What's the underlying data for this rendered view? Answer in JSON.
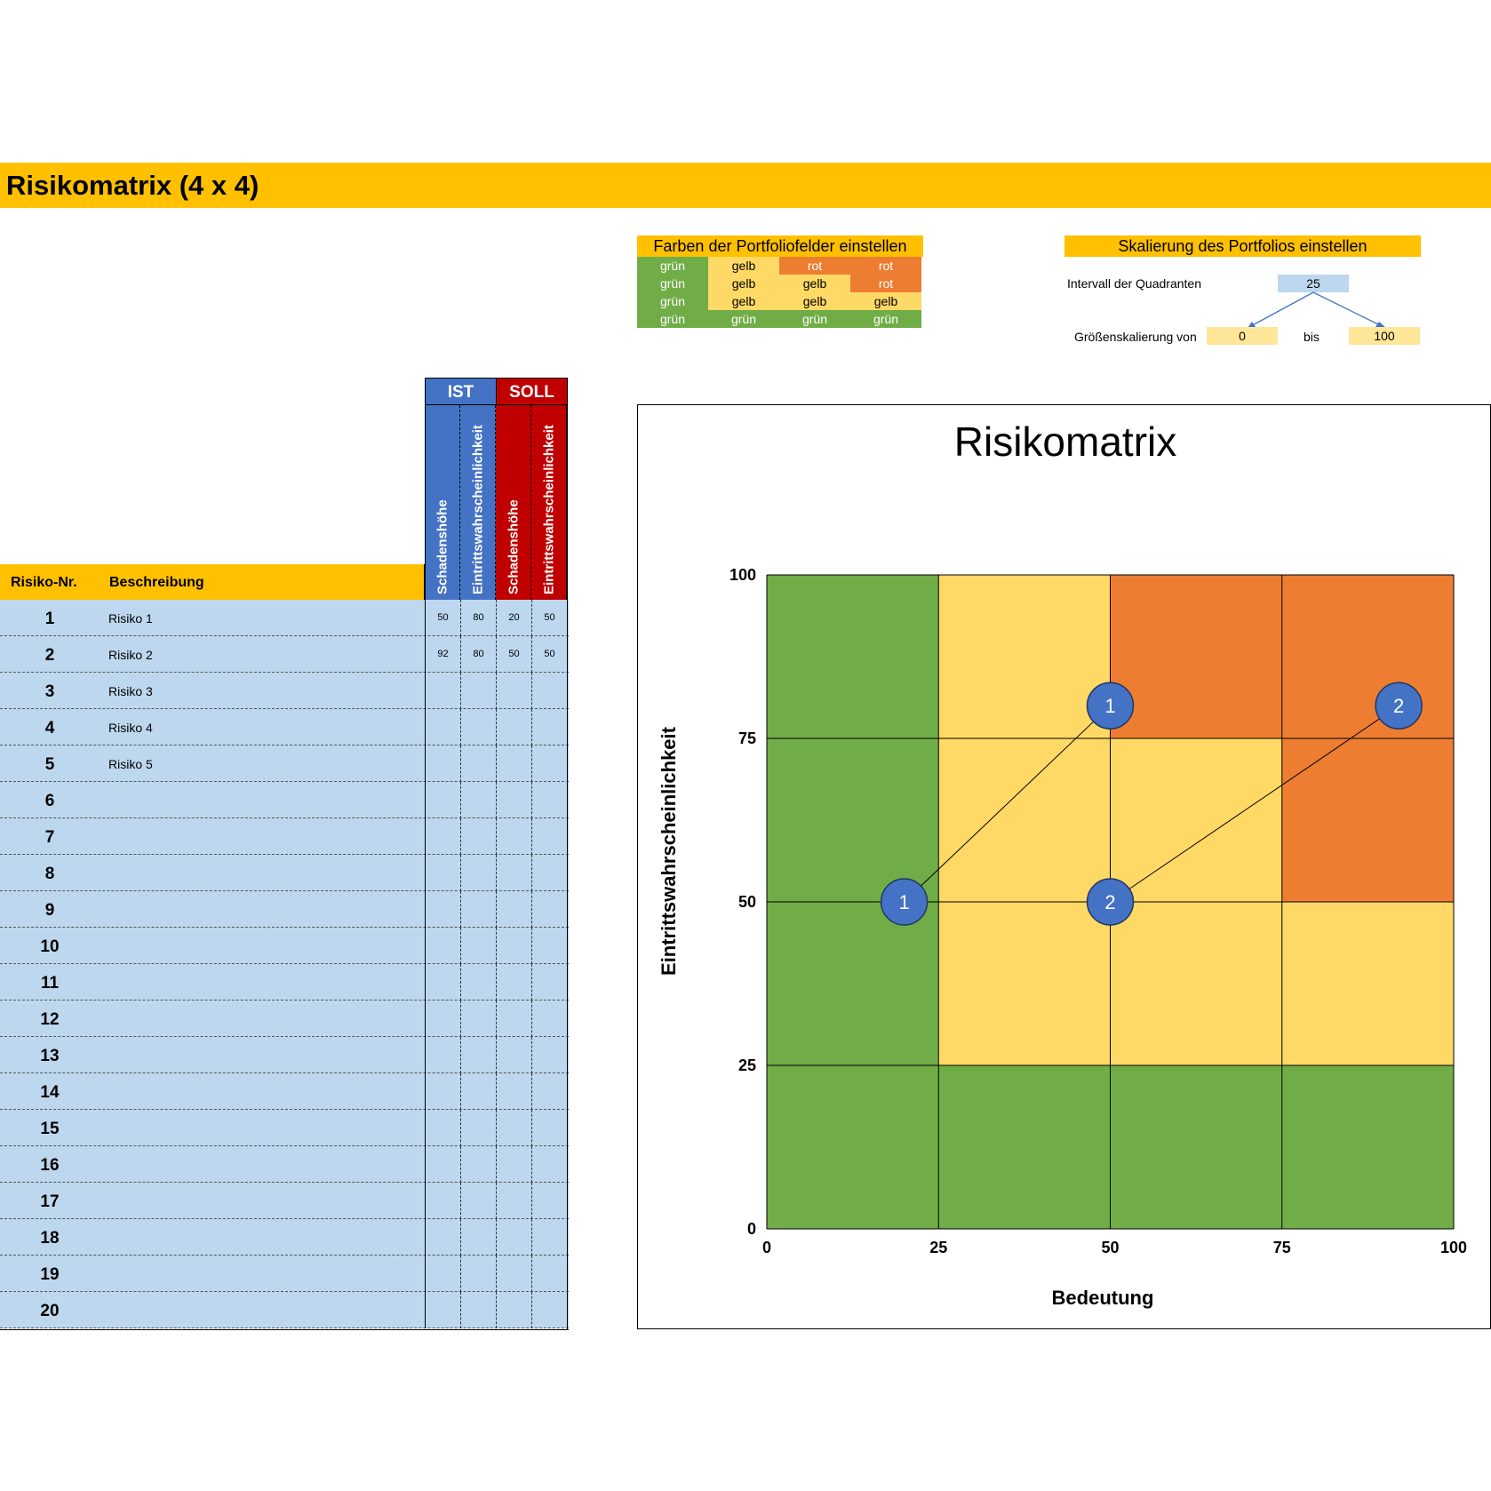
{
  "title": "Risikomatrix (4 x 4)",
  "color_config": {
    "title": "Farben der Portfoliofelder einstellen",
    "rows": [
      [
        "grün",
        "gelb",
        "rot",
        "rot"
      ],
      [
        "grün",
        "gelb",
        "gelb",
        "rot"
      ],
      [
        "grün",
        "gelb",
        "gelb",
        "gelb"
      ],
      [
        "grün",
        "grün",
        "grün",
        "grün"
      ]
    ]
  },
  "scale_config": {
    "title": "Skalierung des Portfolios einstellen",
    "interval_label": "Intervall der Quadranten",
    "interval_value": "25",
    "size_label": "Größenskalierung von",
    "size_from": "0",
    "bis_label": "bis",
    "size_to": "100"
  },
  "table": {
    "group_ist": "IST",
    "group_soll": "SOLL",
    "col_schaden": "Schadenshöhe",
    "col_eintritt": "Eintrittswahrscheinlichkeit",
    "col_nr": "Risiko-Nr.",
    "col_desc": "Beschreibung",
    "rows": [
      {
        "nr": "1",
        "desc": "Risiko 1",
        "ist_s": "50",
        "ist_e": "80",
        "soll_s": "20",
        "soll_e": "50"
      },
      {
        "nr": "2",
        "desc": "Risiko 2",
        "ist_s": "92",
        "ist_e": "80",
        "soll_s": "50",
        "soll_e": "50"
      },
      {
        "nr": "3",
        "desc": "Risiko 3"
      },
      {
        "nr": "4",
        "desc": "Risiko 4"
      },
      {
        "nr": "5",
        "desc": "Risiko 5"
      },
      {
        "nr": "6"
      },
      {
        "nr": "7"
      },
      {
        "nr": "8"
      },
      {
        "nr": "9"
      },
      {
        "nr": "10"
      },
      {
        "nr": "11"
      },
      {
        "nr": "12"
      },
      {
        "nr": "13"
      },
      {
        "nr": "14"
      },
      {
        "nr": "15"
      },
      {
        "nr": "16"
      },
      {
        "nr": "17"
      },
      {
        "nr": "18"
      },
      {
        "nr": "19"
      },
      {
        "nr": "20"
      }
    ]
  },
  "colors": {
    "grün": "#70AD47",
    "gelb": "#FFD966",
    "rot": "#ED7D31",
    "accent": "#FFC000",
    "ist": "#4472C4",
    "soll": "#C00000",
    "row_bg": "#BDD7EE",
    "marker": "#4472C4"
  },
  "chart_data": {
    "type": "scatter",
    "title": "Risikomatrix",
    "xlabel": "Bedeutung",
    "ylabel": "Eintrittswahrscheinlichkeit",
    "xlim": [
      0,
      100
    ],
    "ylim": [
      0,
      100
    ],
    "ticks": [
      0,
      25,
      50,
      75,
      100
    ],
    "grid": true,
    "cells": [
      [
        "grün",
        "gelb",
        "rot",
        "rot"
      ],
      [
        "grün",
        "gelb",
        "gelb",
        "rot"
      ],
      [
        "grün",
        "gelb",
        "gelb",
        "gelb"
      ],
      [
        "grün",
        "grün",
        "grün",
        "grün"
      ]
    ],
    "points": [
      {
        "label": "1",
        "ist": [
          50,
          80
        ],
        "soll": [
          20,
          50
        ]
      },
      {
        "label": "2",
        "ist": [
          92,
          80
        ],
        "soll": [
          50,
          50
        ]
      }
    ]
  }
}
